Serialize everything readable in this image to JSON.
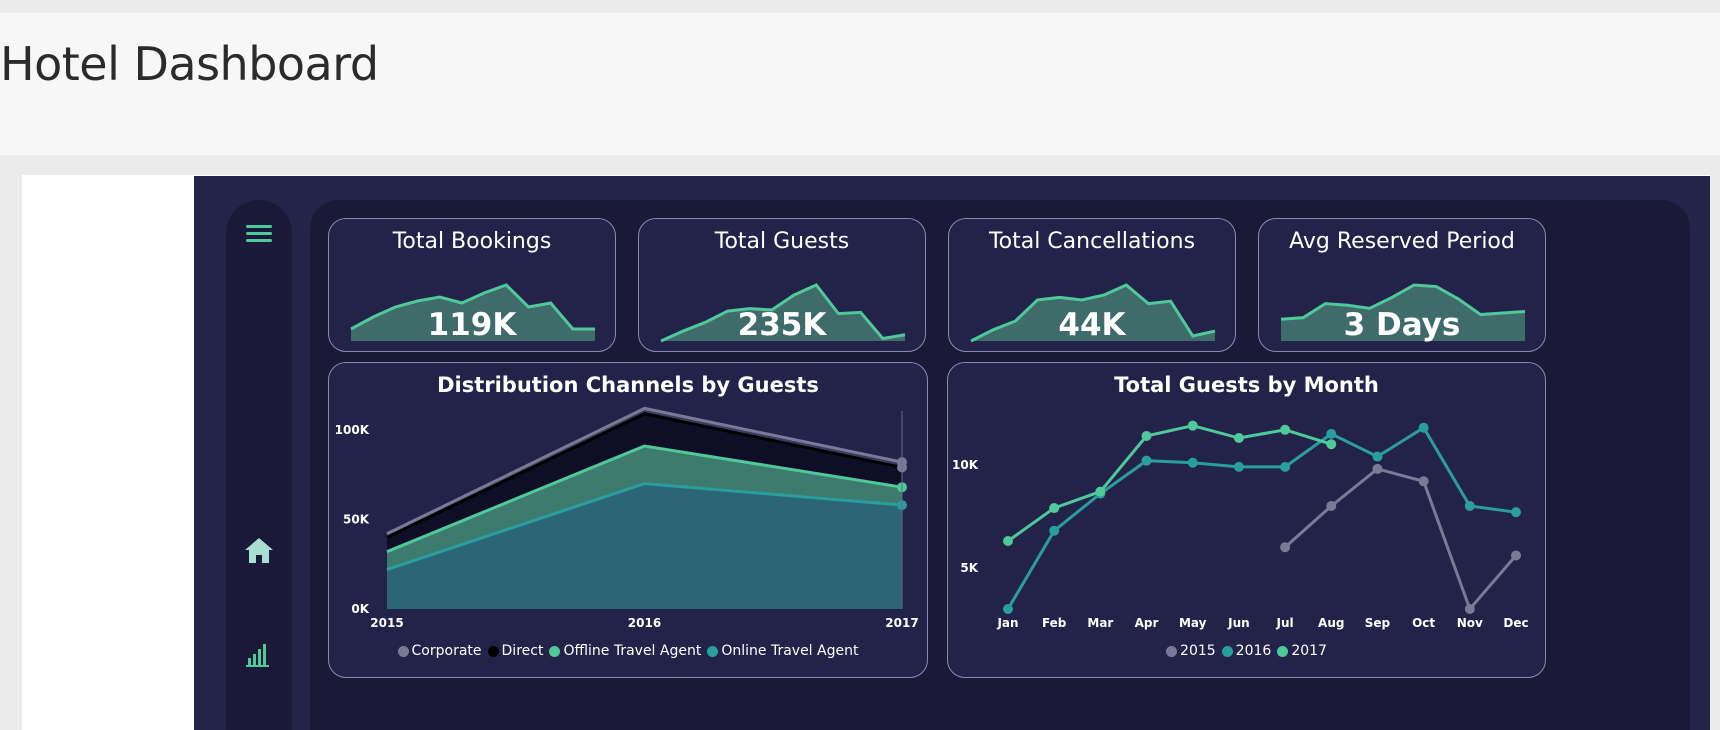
{
  "page": {
    "title": "Hotel Dashboard"
  },
  "nav": {
    "menu_icon": "hamburger-menu-icon",
    "home_icon": "home-icon",
    "chart_icon": "bar-chart-icon"
  },
  "colors": {
    "report_bg": "#24244a",
    "panel_bg": "#1a1a38",
    "accent": "#4fc89a",
    "teal": "#2a9d9f",
    "gray": "#7a7a98",
    "dark": "#0d0d22"
  },
  "kpis": [
    {
      "title": "Total Bookings",
      "value": "119K",
      "trend": [
        6,
        12,
        17,
        20,
        22,
        19,
        24,
        28,
        17,
        19,
        6,
        6
      ]
    },
    {
      "title": "Total Guests",
      "value": "235K",
      "trend": [
        0,
        8,
        15,
        24,
        26,
        25,
        37,
        45,
        22,
        23,
        2,
        5
      ]
    },
    {
      "title": "Total Cancellations",
      "value": "44K",
      "trend": [
        0,
        9,
        16,
        33,
        35,
        33,
        37,
        45,
        30,
        32,
        4,
        8
      ]
    },
    {
      "title": "Avg Reserved Period",
      "value": "3 Days",
      "trend": [
        14,
        15,
        24,
        23,
        21,
        28,
        36,
        35,
        27,
        17,
        18,
        19
      ]
    }
  ],
  "chart_data": [
    {
      "type": "area",
      "title": "Distribution Channels by Guests",
      "categories": [
        "2015",
        "2016",
        "2017"
      ],
      "yticks": [
        "0K",
        "50K",
        "100K"
      ],
      "ylim": [
        0,
        115000
      ],
      "stacked": true,
      "series": [
        {
          "name": "Online Travel Agent",
          "color": "#2a9d9f",
          "values": [
            22000,
            70000,
            58000
          ]
        },
        {
          "name": "Offline Travel Agent",
          "color": "#4fc89a",
          "values": [
            10000,
            21000,
            10000
          ]
        },
        {
          "name": "Direct",
          "color": "#0d0d22",
          "values": [
            8000,
            18000,
            11000
          ]
        },
        {
          "name": "Corporate",
          "color": "#7a7a98",
          "values": [
            2000,
            3000,
            3000
          ]
        }
      ],
      "legend": [
        "Corporate",
        "Direct",
        "Offline Travel Agent",
        "Online Travel Agent"
      ],
      "legend_colors": [
        "#7a7a98",
        "#0d0d22",
        "#4fc89a",
        "#2a9d9f"
      ],
      "legend_position": "bottom"
    },
    {
      "type": "line",
      "title": "Total Guests by Month",
      "categories": [
        "Jan",
        "Feb",
        "Mar",
        "Apr",
        "May",
        "Jun",
        "Jul",
        "Aug",
        "Sep",
        "Oct",
        "Nov",
        "Dec"
      ],
      "yticks": [
        "5K",
        "10K"
      ],
      "ytick_values": [
        5000,
        10000
      ],
      "ylim": [
        3000,
        13000
      ],
      "series": [
        {
          "name": "2015",
          "color": "#7a7a98",
          "values": [
            null,
            null,
            null,
            null,
            null,
            null,
            6000,
            8000,
            9800,
            9200,
            3000,
            5600
          ]
        },
        {
          "name": "2016",
          "color": "#2a9d9f",
          "values": [
            3000,
            6800,
            8600,
            10200,
            10100,
            9900,
            9900,
            11500,
            10400,
            11800,
            8000,
            7700
          ]
        },
        {
          "name": "2017",
          "color": "#4fc89a",
          "values": [
            6300,
            7900,
            8700,
            11400,
            11900,
            11300,
            11700,
            11000,
            null,
            null,
            null,
            null
          ]
        }
      ],
      "legend": [
        "2015",
        "2016",
        "2017"
      ],
      "legend_colors": [
        "#7a7a98",
        "#2a9d9f",
        "#4fc89a"
      ],
      "legend_position": "bottom"
    }
  ]
}
